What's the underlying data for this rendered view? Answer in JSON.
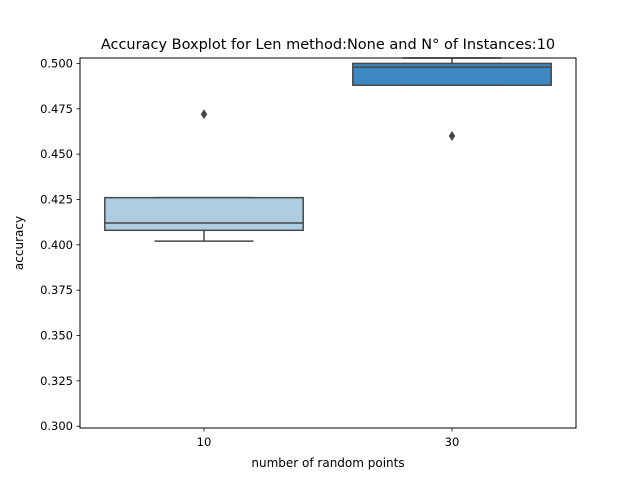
{
  "chart_data": {
    "type": "boxplot",
    "title": "Accuracy Boxplot for Len method:None and N° of Instances:10",
    "xlabel": "number of random points",
    "ylabel": "accuracy",
    "categories": [
      "10",
      "30"
    ],
    "ylim": [
      0.299,
      0.503
    ],
    "yticks": [
      0.3,
      0.325,
      0.35,
      0.375,
      0.4,
      0.425,
      0.45,
      0.475,
      0.5
    ],
    "ytick_labels": [
      "0.300",
      "0.325",
      "0.350",
      "0.375",
      "0.400",
      "0.425",
      "0.450",
      "0.475",
      "0.500"
    ],
    "grid": false,
    "boxes": [
      {
        "category": "10",
        "whisker_low": 0.402,
        "q1": 0.408,
        "median": 0.412,
        "q3": 0.426,
        "whisker_high": 0.426,
        "outliers": [
          0.472
        ],
        "color": "#afcde2"
      },
      {
        "category": "30",
        "whisker_low": 0.488,
        "q1": 0.488,
        "median": 0.498,
        "q3": 0.5,
        "whisker_high": 0.503,
        "outliers": [
          0.46
        ],
        "color": "#3d88c2"
      }
    ]
  }
}
